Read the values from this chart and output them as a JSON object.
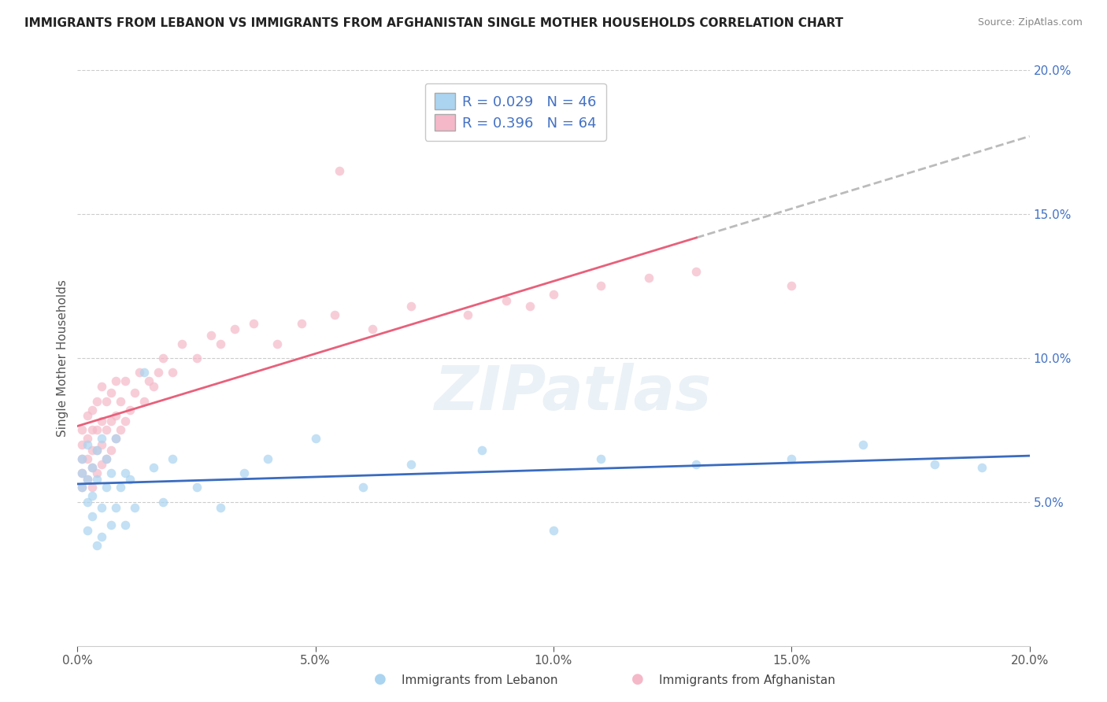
{
  "title": "IMMIGRANTS FROM LEBANON VS IMMIGRANTS FROM AFGHANISTAN SINGLE MOTHER HOUSEHOLDS CORRELATION CHART",
  "source": "Source: ZipAtlas.com",
  "ylabel": "Single Mother Households",
  "legend_labels": [
    "Immigrants from Lebanon",
    "Immigrants from Afghanistan"
  ],
  "legend_R": [
    0.029,
    0.396
  ],
  "legend_N": [
    46,
    64
  ],
  "xlim": [
    0.0,
    0.2
  ],
  "ylim": [
    0.0,
    0.2
  ],
  "xticks": [
    0.0,
    0.05,
    0.1,
    0.15,
    0.2
  ],
  "yticks": [
    0.05,
    0.1,
    0.15,
    0.2
  ],
  "color_lebanon": "#aad4f0",
  "color_afghanistan": "#f5b8c8",
  "color_lebanon_line": "#3a6bbf",
  "color_afghanistan_line": "#e8607a",
  "color_dashed": "#bbbbbb",
  "watermark": "ZIPatlas",
  "background_color": "#ffffff",
  "gridline_color": "#cccccc",
  "dot_size": 70,
  "dot_alpha": 0.7,
  "lebanon_x": [
    0.001,
    0.001,
    0.001,
    0.002,
    0.002,
    0.002,
    0.002,
    0.003,
    0.003,
    0.003,
    0.004,
    0.004,
    0.004,
    0.005,
    0.005,
    0.005,
    0.006,
    0.006,
    0.007,
    0.007,
    0.008,
    0.008,
    0.009,
    0.01,
    0.01,
    0.011,
    0.012,
    0.014,
    0.016,
    0.018,
    0.02,
    0.025,
    0.03,
    0.035,
    0.04,
    0.05,
    0.06,
    0.07,
    0.085,
    0.1,
    0.11,
    0.13,
    0.15,
    0.165,
    0.18,
    0.19
  ],
  "lebanon_y": [
    0.06,
    0.055,
    0.065,
    0.05,
    0.058,
    0.04,
    0.07,
    0.052,
    0.062,
    0.045,
    0.058,
    0.035,
    0.068,
    0.048,
    0.072,
    0.038,
    0.055,
    0.065,
    0.06,
    0.042,
    0.048,
    0.072,
    0.055,
    0.06,
    0.042,
    0.058,
    0.048,
    0.095,
    0.062,
    0.05,
    0.065,
    0.055,
    0.048,
    0.06,
    0.065,
    0.072,
    0.055,
    0.063,
    0.068,
    0.04,
    0.065,
    0.063,
    0.065,
    0.07,
    0.063,
    0.062
  ],
  "afghanistan_x": [
    0.001,
    0.001,
    0.001,
    0.001,
    0.001,
    0.002,
    0.002,
    0.002,
    0.002,
    0.003,
    0.003,
    0.003,
    0.003,
    0.003,
    0.004,
    0.004,
    0.004,
    0.004,
    0.005,
    0.005,
    0.005,
    0.005,
    0.006,
    0.006,
    0.006,
    0.007,
    0.007,
    0.007,
    0.008,
    0.008,
    0.008,
    0.009,
    0.009,
    0.01,
    0.01,
    0.011,
    0.012,
    0.013,
    0.014,
    0.015,
    0.016,
    0.017,
    0.018,
    0.02,
    0.022,
    0.025,
    0.028,
    0.03,
    0.033,
    0.037,
    0.042,
    0.047,
    0.054,
    0.055,
    0.062,
    0.07,
    0.082,
    0.09,
    0.095,
    0.1,
    0.11,
    0.12,
    0.13,
    0.15
  ],
  "afghanistan_y": [
    0.055,
    0.06,
    0.065,
    0.07,
    0.075,
    0.058,
    0.065,
    0.072,
    0.08,
    0.055,
    0.062,
    0.068,
    0.075,
    0.082,
    0.06,
    0.068,
    0.075,
    0.085,
    0.063,
    0.07,
    0.078,
    0.09,
    0.065,
    0.075,
    0.085,
    0.068,
    0.078,
    0.088,
    0.072,
    0.08,
    0.092,
    0.075,
    0.085,
    0.078,
    0.092,
    0.082,
    0.088,
    0.095,
    0.085,
    0.092,
    0.09,
    0.095,
    0.1,
    0.095,
    0.105,
    0.1,
    0.108,
    0.105,
    0.11,
    0.112,
    0.105,
    0.112,
    0.115,
    0.165,
    0.11,
    0.118,
    0.115,
    0.12,
    0.118,
    0.122,
    0.125,
    0.128,
    0.13,
    0.125
  ]
}
